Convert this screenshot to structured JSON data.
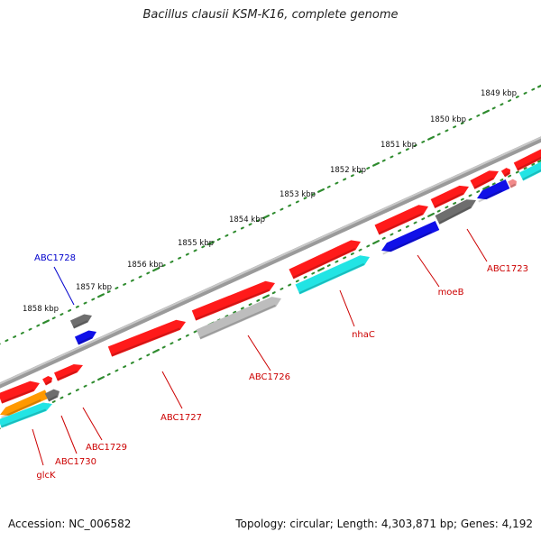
{
  "title": "Bacillus clausii KSM-K16, complete genome",
  "footer": {
    "accession": "Accession: NC_006582",
    "summary": "Topology: circular; Length: 4,303,871 bp; Genes: 4,192"
  },
  "colors": {
    "backbone": "#8c8c8c",
    "scale_tick": "#2e8b2e",
    "label_red": "#cc0000",
    "label_blue": "#0000cc",
    "gene_red": "#ff1a1a",
    "gene_blue": "#1010e8",
    "gene_cyan": "#22e4e4",
    "gene_dark_gray": "#6e6e6e",
    "gene_light_gray": "#bdbdbd",
    "gene_orange": "#ff9900",
    "gene_pink": "#f28a8a"
  },
  "scale_labels": [
    "1849 kbp",
    "1850 kbp",
    "1851 kbp",
    "1852 kbp",
    "1853 kbp",
    "1854 kbp",
    "1855 kbp",
    "1856 kbp",
    "1857 kbp",
    "1858 kbp"
  ],
  "gene_labels": [
    {
      "text": "ABC1723",
      "color": "red"
    },
    {
      "text": "moeB",
      "color": "red"
    },
    {
      "text": "nhaC",
      "color": "red"
    },
    {
      "text": "ABC1726",
      "color": "red"
    },
    {
      "text": "ABC1727",
      "color": "red"
    },
    {
      "text": "ABC1728",
      "color": "blue"
    },
    {
      "text": "ABC1729",
      "color": "red"
    },
    {
      "text": "ABC1730",
      "color": "red"
    },
    {
      "text": "glcK",
      "color": "red"
    }
  ]
}
